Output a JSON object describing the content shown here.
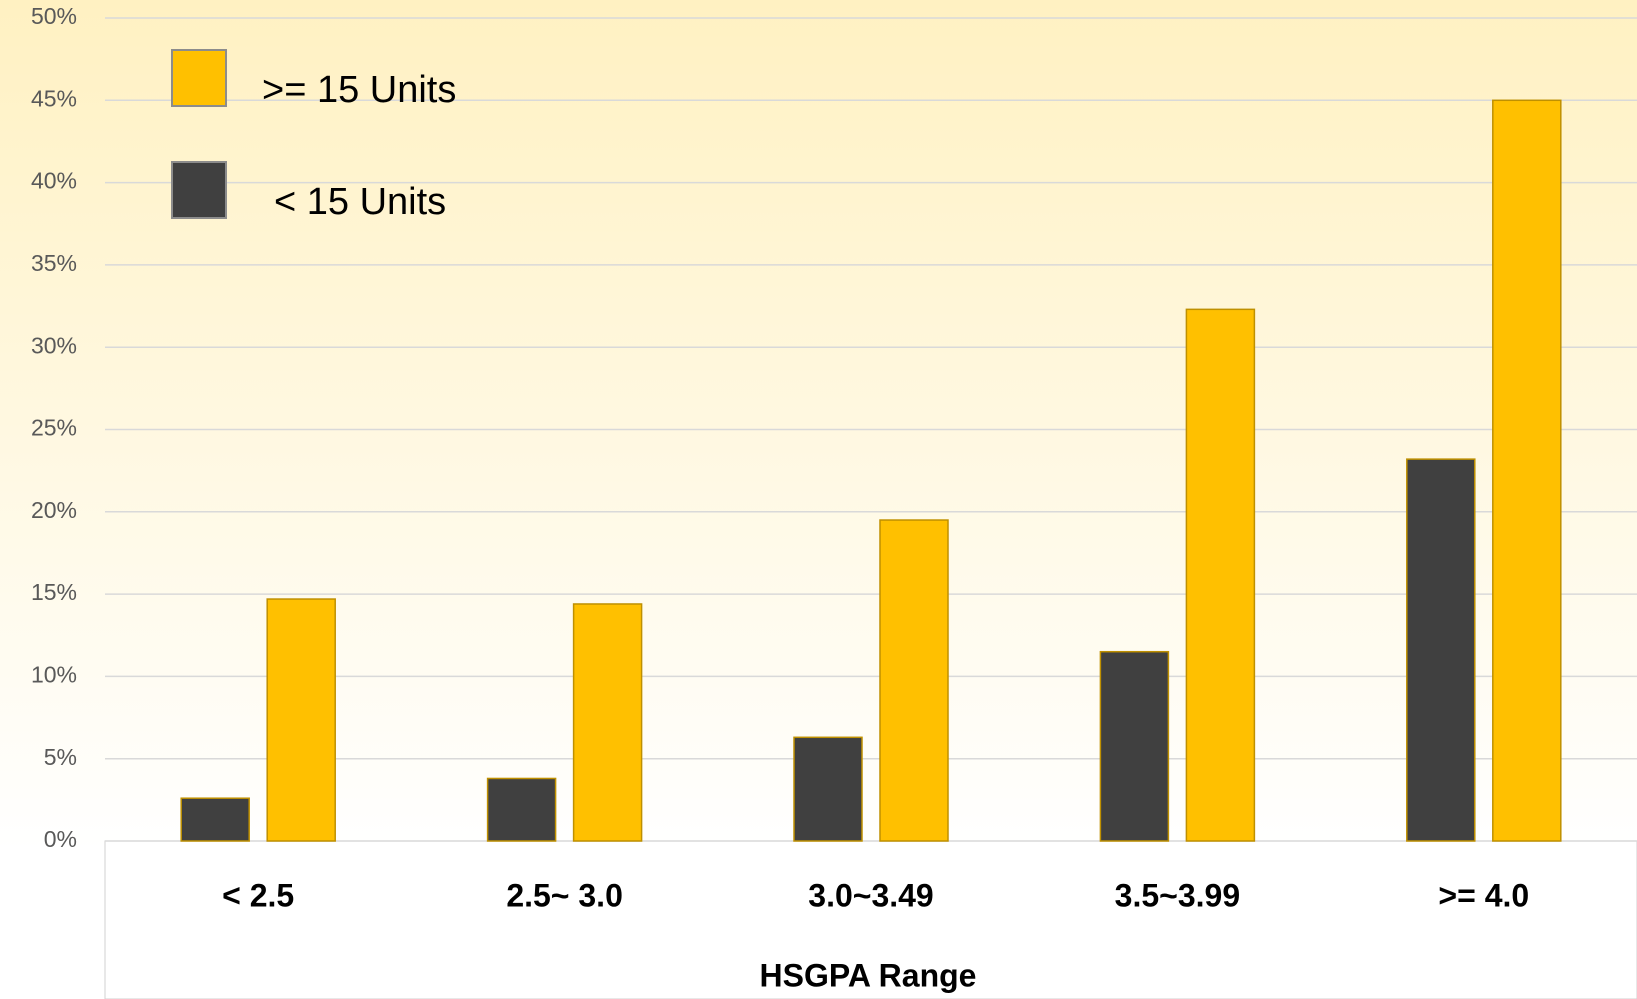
{
  "chart_data": {
    "type": "bar",
    "x_label": "HSGPA Range",
    "categories": [
      "< 2.5",
      "2.5~ 3.0",
      "3.0~3.49",
      "3.5~3.99",
      ">= 4.0"
    ],
    "series": [
      {
        "name": ">= 15 Units",
        "color": "#ffc000",
        "values": [
          14.7,
          14.4,
          19.5,
          32.3,
          45.0
        ]
      },
      {
        "name": "< 15 Units",
        "color": "#404040",
        "values": [
          2.6,
          3.8,
          6.3,
          11.5,
          23.2
        ]
      }
    ],
    "ylim": [
      0,
      50
    ],
    "yticks": [
      {
        "value": 0,
        "label": "0%"
      },
      {
        "value": 5,
        "label": "5%"
      },
      {
        "value": 10,
        "label": "10%"
      },
      {
        "value": 15,
        "label": "15%"
      },
      {
        "value": 20,
        "label": "20%"
      },
      {
        "value": 25,
        "label": "25%"
      },
      {
        "value": 30,
        "label": "30%"
      },
      {
        "value": 35,
        "label": "35%"
      },
      {
        "value": 40,
        "label": "40%"
      },
      {
        "value": 45,
        "label": "45%"
      },
      {
        "value": 50,
        "label": "50%"
      }
    ],
    "grid": true,
    "legend": "top-left"
  }
}
